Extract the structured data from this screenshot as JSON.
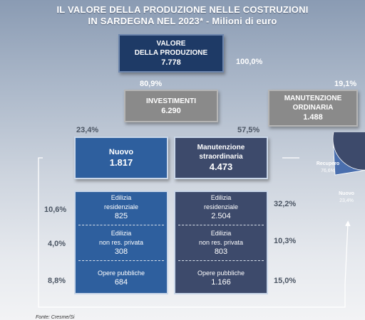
{
  "title": {
    "line1": "IL VALORE DELLA PRODUZIONE NELLE COSTRUZIONI",
    "line2": "IN SARDEGNA NEL 2023* - Milioni di euro"
  },
  "valore": {
    "label1": "VALORE",
    "label2": "DELLA PRODUZIONE",
    "value": "7.778",
    "pct": "100,0%"
  },
  "investimenti": {
    "label": "INVESTIMENTI",
    "value": "6.290",
    "pct": "80,9%"
  },
  "manutenzione_ordinaria": {
    "label1": "MANUTENZIONE",
    "label2": "ORDINARIA",
    "value": "1.488",
    "pct": "19,1%"
  },
  "nuovo": {
    "label": "Nuovo",
    "value": "1.817",
    "pct": "23,4%"
  },
  "manutenzione_straordinaria": {
    "label1": "Manutenzione",
    "label2": "straordinaria",
    "value": "4.473",
    "pct": "57,5%"
  },
  "nuovo_breakdown": [
    {
      "label1": "Edilizia",
      "label2": "residenziale",
      "value": "825",
      "pct": "10,6%"
    },
    {
      "label1": "Edilizia",
      "label2": "non res. privata",
      "value": "308",
      "pct": "4,0%"
    },
    {
      "label1": "Opere pubbliche",
      "label2": "",
      "value": "684",
      "pct": "8,8%"
    }
  ],
  "straordinaria_breakdown": [
    {
      "label1": "Edilizia",
      "label2": "residenziale",
      "value": "2.504",
      "pct": "32,2%"
    },
    {
      "label1": "Edilizia",
      "label2": "non res. privata",
      "value": "803",
      "pct": "10,3%"
    },
    {
      "label1": "Opere pubbliche",
      "label2": "",
      "value": "1.166",
      "pct": "15,0%"
    }
  ],
  "pie": {
    "slices": [
      {
        "label": "Recupero",
        "pct": "76,6%",
        "value": 76.6,
        "color": "#3d4a6b"
      },
      {
        "label": "Nuovo",
        "pct": "23,4%",
        "value": 23.4,
        "color": "#4a6fae"
      }
    ]
  },
  "source": "Fonte: Cresme/Si"
}
